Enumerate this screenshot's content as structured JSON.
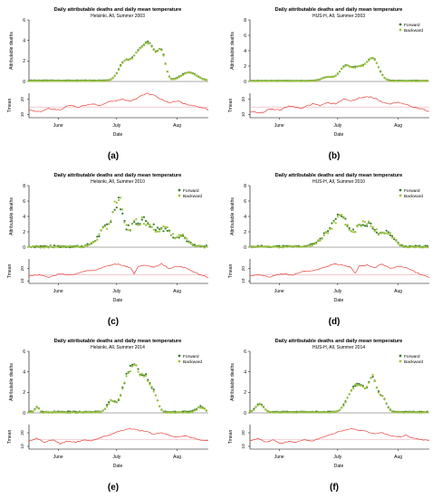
{
  "colors": {
    "forward": "#3a7d2c",
    "backward": "#9cc23a",
    "temperature": "#e8403a",
    "reference_line": "#e8aab4",
    "axis": "#000000"
  },
  "legend": {
    "forward": "Forward",
    "backward": "Backward"
  },
  "chart_data": [
    {
      "type": "scatter",
      "panel_label": "(a)",
      "title": "Daily attributable deaths and daily mean temperature",
      "subtitle": "Helsinki, All, Summer 2003",
      "ylabel": "Attributable deaths",
      "ylim": [
        0,
        6
      ],
      "yticks": [
        0,
        2,
        4,
        6
      ],
      "temp_ylabel": "Tmean",
      "temp_ylim": [
        8,
        24
      ],
      "temp_yticks": [
        "10",
        "20"
      ],
      "temp_ref": 15,
      "xlabel": "Date",
      "xlim": [
        0,
        92
      ],
      "xticks": [
        {
          "day": 15,
          "label": "June"
        },
        {
          "day": 45,
          "label": "July"
        },
        {
          "day": 76,
          "label": "Aug"
        }
      ],
      "legend_position": "none",
      "show_legend": false,
      "baseline": 0.1,
      "noise": 0.05,
      "seed": 3,
      "peaks": [
        {
          "c": 49,
          "w": 3,
          "a": 1.8
        },
        {
          "c": 56,
          "w": 3,
          "a": 2.4
        },
        {
          "c": 62,
          "w": 3,
          "a": 3.3
        },
        {
          "c": 68,
          "w": 2,
          "a": 2.6
        },
        {
          "c": 82,
          "w": 4,
          "a": 0.8
        }
      ],
      "temperature": [
        [
          0,
          13
        ],
        [
          6,
          12
        ],
        [
          10,
          14
        ],
        [
          16,
          13
        ],
        [
          20,
          16
        ],
        [
          26,
          15
        ],
        [
          32,
          17
        ],
        [
          36,
          16
        ],
        [
          40,
          18
        ],
        [
          44,
          19
        ],
        [
          48,
          20
        ],
        [
          52,
          19
        ],
        [
          56,
          21
        ],
        [
          60,
          24
        ],
        [
          64,
          23
        ],
        [
          68,
          20
        ],
        [
          72,
          18
        ],
        [
          76,
          19
        ],
        [
          80,
          17
        ],
        [
          84,
          16
        ],
        [
          88,
          15
        ],
        [
          92,
          13
        ]
      ]
    },
    {
      "type": "scatter",
      "panel_label": "(b)",
      "title": "Daily attributable deaths and daily mean temperature",
      "subtitle": "HUS-H, All, Summer 2003",
      "ylabel": "Attributable deaths",
      "ylim": [
        0,
        8
      ],
      "yticks": [
        0,
        2,
        4,
        6,
        8
      ],
      "temp_ylabel": "Tmean",
      "temp_ylim": [
        8,
        24
      ],
      "temp_yticks": [
        "10",
        "20"
      ],
      "temp_ref": 15,
      "xlabel": "Date",
      "xlim": [
        0,
        92
      ],
      "xticks": [
        {
          "day": 15,
          "label": "June"
        },
        {
          "day": 45,
          "label": "July"
        },
        {
          "day": 76,
          "label": "Aug"
        }
      ],
      "legend_position": "top-right",
      "show_legend": true,
      "baseline": 0.1,
      "noise": 0.06,
      "seed": 5,
      "peaks": [
        {
          "c": 40,
          "w": 3,
          "a": 0.5
        },
        {
          "c": 49,
          "w": 3,
          "a": 1.9
        },
        {
          "c": 56,
          "w": 3,
          "a": 1.6
        },
        {
          "c": 63,
          "w": 3,
          "a": 2.9
        }
      ],
      "temperature": [
        [
          0,
          12
        ],
        [
          6,
          11
        ],
        [
          10,
          14
        ],
        [
          16,
          13
        ],
        [
          20,
          16
        ],
        [
          26,
          14
        ],
        [
          32,
          17
        ],
        [
          36,
          16
        ],
        [
          40,
          18
        ],
        [
          44,
          17
        ],
        [
          48,
          20
        ],
        [
          52,
          19
        ],
        [
          56,
          21
        ],
        [
          60,
          22
        ],
        [
          64,
          21
        ],
        [
          68,
          18
        ],
        [
          72,
          17
        ],
        [
          76,
          18
        ],
        [
          80,
          17
        ],
        [
          84,
          15
        ],
        [
          88,
          14
        ],
        [
          92,
          12
        ]
      ]
    },
    {
      "type": "scatter",
      "panel_label": "(c)",
      "title": "Daily attributable deaths and daily mean temperature",
      "subtitle": "Helsinki, All, Summer 2010",
      "ylabel": "Attributable deaths",
      "ylim": [
        0,
        8
      ],
      "yticks": [
        0,
        2,
        4,
        6,
        8
      ],
      "temp_ylabel": "Tmean",
      "temp_ylim": [
        8,
        28
      ],
      "temp_yticks": [
        "10",
        "20"
      ],
      "temp_ref": 15,
      "xlabel": "Date",
      "xlim": [
        0,
        92
      ],
      "xticks": [
        {
          "day": 15,
          "label": "June"
        },
        {
          "day": 45,
          "label": "July"
        },
        {
          "day": 76,
          "label": "Aug"
        }
      ],
      "legend_position": "top-right",
      "show_legend": true,
      "baseline": 0.1,
      "noise": 0.4,
      "seed": 7,
      "peaks": [
        {
          "c": 42,
          "w": 5,
          "a": 3.0
        },
        {
          "c": 46,
          "w": 2,
          "a": 3.8
        },
        {
          "c": 55,
          "w": 4,
          "a": 2.6
        },
        {
          "c": 62,
          "w": 4,
          "a": 2.4
        },
        {
          "c": 70,
          "w": 3,
          "a": 2.0
        },
        {
          "c": 78,
          "w": 3,
          "a": 1.4
        }
      ],
      "temperature": [
        [
          0,
          14
        ],
        [
          5,
          15
        ],
        [
          10,
          13
        ],
        [
          16,
          16
        ],
        [
          22,
          15
        ],
        [
          28,
          18
        ],
        [
          34,
          19
        ],
        [
          40,
          22
        ],
        [
          44,
          24
        ],
        [
          48,
          23
        ],
        [
          52,
          21
        ],
        [
          54,
          16
        ],
        [
          56,
          22
        ],
        [
          60,
          23
        ],
        [
          64,
          21
        ],
        [
          68,
          24
        ],
        [
          72,
          20
        ],
        [
          76,
          22
        ],
        [
          80,
          21
        ],
        [
          84,
          18
        ],
        [
          88,
          15
        ],
        [
          92,
          13
        ]
      ]
    },
    {
      "type": "scatter",
      "panel_label": "(d)",
      "title": "Daily attributable deaths and daily mean temperature",
      "subtitle": "HUS-H, All, Summer 2010",
      "ylabel": "Attributable deaths",
      "ylim": [
        0,
        8
      ],
      "yticks": [
        0,
        2,
        4,
        6,
        8
      ],
      "temp_ylabel": "Tmean",
      "temp_ylim": [
        8,
        28
      ],
      "temp_yticks": [
        "10",
        "20"
      ],
      "temp_ref": 15,
      "xlabel": "Date",
      "xlim": [
        0,
        92
      ],
      "xticks": [
        {
          "day": 15,
          "label": "June"
        },
        {
          "day": 45,
          "label": "July"
        },
        {
          "day": 76,
          "label": "Aug"
        }
      ],
      "legend_position": "top-right",
      "show_legend": true,
      "baseline": 0.1,
      "noise": 0.3,
      "seed": 11,
      "peaks": [
        {
          "c": 42,
          "w": 5,
          "a": 2.0
        },
        {
          "c": 47,
          "w": 3,
          "a": 2.6
        },
        {
          "c": 56,
          "w": 4,
          "a": 1.8
        },
        {
          "c": 62,
          "w": 4,
          "a": 2.2
        },
        {
          "c": 71,
          "w": 3,
          "a": 1.6
        }
      ],
      "temperature": [
        [
          0,
          14
        ],
        [
          5,
          15
        ],
        [
          10,
          13
        ],
        [
          16,
          16
        ],
        [
          22,
          15
        ],
        [
          28,
          18
        ],
        [
          34,
          19
        ],
        [
          40,
          22
        ],
        [
          44,
          24
        ],
        [
          48,
          23
        ],
        [
          52,
          21
        ],
        [
          54,
          16
        ],
        [
          56,
          22
        ],
        [
          60,
          23
        ],
        [
          64,
          21
        ],
        [
          68,
          24
        ],
        [
          72,
          20
        ],
        [
          76,
          22
        ],
        [
          80,
          21
        ],
        [
          84,
          18
        ],
        [
          88,
          15
        ],
        [
          92,
          13
        ]
      ]
    },
    {
      "type": "scatter",
      "panel_label": "(e)",
      "title": "Daily attributable deaths and daily mean temperature",
      "subtitle": "Helsinki, All, Summer 2014",
      "ylabel": "Attributable deaths",
      "ylim": [
        0,
        6
      ],
      "yticks": [
        0,
        2,
        4,
        6
      ],
      "temp_ylabel": "Tmean",
      "temp_ylim": [
        8,
        26
      ],
      "temp_yticks": [
        "10",
        "20"
      ],
      "temp_ref": 15,
      "xlabel": "Date",
      "xlim": [
        0,
        92
      ],
      "xticks": [
        {
          "day": 15,
          "label": "June"
        },
        {
          "day": 45,
          "label": "July"
        },
        {
          "day": 76,
          "label": "Aug"
        }
      ],
      "legend_position": "top-right",
      "show_legend": true,
      "baseline": 0.1,
      "noise": 0.15,
      "seed": 13,
      "peaks": [
        {
          "c": 4,
          "w": 1,
          "a": 0.5
        },
        {
          "c": 42,
          "w": 2,
          "a": 1.0
        },
        {
          "c": 50,
          "w": 3,
          "a": 2.6
        },
        {
          "c": 55,
          "w": 3,
          "a": 3.6
        },
        {
          "c": 60,
          "w": 2,
          "a": 2.4
        },
        {
          "c": 64,
          "w": 2,
          "a": 1.8
        },
        {
          "c": 88,
          "w": 2,
          "a": 0.5
        }
      ],
      "temperature": [
        [
          0,
          14
        ],
        [
          4,
          16
        ],
        [
          8,
          13
        ],
        [
          12,
          15
        ],
        [
          16,
          12
        ],
        [
          20,
          14
        ],
        [
          24,
          13
        ],
        [
          28,
          15
        ],
        [
          32,
          14
        ],
        [
          36,
          16
        ],
        [
          40,
          18
        ],
        [
          44,
          20
        ],
        [
          48,
          22
        ],
        [
          52,
          23
        ],
        [
          56,
          22
        ],
        [
          60,
          21
        ],
        [
          64,
          19
        ],
        [
          68,
          20
        ],
        [
          72,
          18
        ],
        [
          76,
          17
        ],
        [
          80,
          18
        ],
        [
          84,
          16
        ],
        [
          88,
          15
        ],
        [
          92,
          14
        ]
      ]
    },
    {
      "type": "scatter",
      "panel_label": "(f)",
      "title": "Daily attributable deaths and daily mean temperature",
      "subtitle": "HUS-H, All, Summer 2014",
      "ylabel": "Attributable deaths",
      "ylim": [
        0,
        6
      ],
      "yticks": [
        0,
        2,
        4,
        6
      ],
      "temp_ylabel": "Tmean",
      "temp_ylim": [
        8,
        26
      ],
      "temp_yticks": [
        "10",
        "20"
      ],
      "temp_ref": 15,
      "xlabel": "Date",
      "xlim": [
        0,
        92
      ],
      "xticks": [
        {
          "day": 15,
          "label": "June"
        },
        {
          "day": 45,
          "label": "July"
        },
        {
          "day": 76,
          "label": "Aug"
        }
      ],
      "legend_position": "top-right",
      "show_legend": true,
      "baseline": 0.1,
      "noise": 0.1,
      "seed": 17,
      "peaks": [
        {
          "c": 5,
          "w": 2,
          "a": 0.8
        },
        {
          "c": 52,
          "w": 3,
          "a": 1.6
        },
        {
          "c": 57,
          "w": 3,
          "a": 2.2
        },
        {
          "c": 63,
          "w": 2,
          "a": 3.2
        },
        {
          "c": 68,
          "w": 2,
          "a": 1.4
        }
      ],
      "temperature": [
        [
          0,
          14
        ],
        [
          4,
          16
        ],
        [
          8,
          13
        ],
        [
          12,
          15
        ],
        [
          16,
          12
        ],
        [
          20,
          14
        ],
        [
          24,
          13
        ],
        [
          28,
          15
        ],
        [
          32,
          14
        ],
        [
          36,
          16
        ],
        [
          40,
          18
        ],
        [
          44,
          20
        ],
        [
          48,
          22
        ],
        [
          52,
          23
        ],
        [
          56,
          22
        ],
        [
          60,
          21
        ],
        [
          64,
          19
        ],
        [
          68,
          20
        ],
        [
          72,
          18
        ],
        [
          76,
          17
        ],
        [
          80,
          18
        ],
        [
          84,
          16
        ],
        [
          88,
          15
        ],
        [
          92,
          14
        ]
      ]
    }
  ]
}
